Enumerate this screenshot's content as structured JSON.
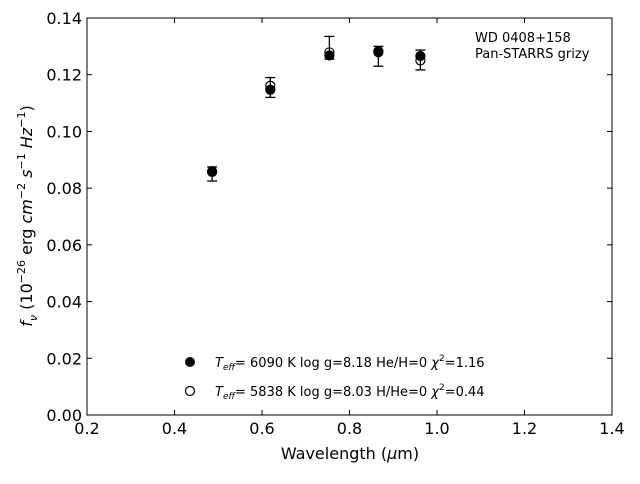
{
  "chart_data": {
    "type": "scatter",
    "title": "",
    "xlabel": {
      "pre": "Wavelength (",
      "sym": "μ",
      "post": "m)"
    },
    "ylabel": {
      "f": "f",
      "sub": "ν",
      "open": " (10",
      "exp1": "−26",
      "unit": " erg ",
      "cm": "cm",
      "exp2": "−2",
      "s": " s",
      "exp3": "−1",
      "hz": " Hz",
      "exp4": "−1",
      "close": ")"
    },
    "xlim": [
      0.2,
      1.4
    ],
    "ylim": [
      0.0,
      0.14
    ],
    "xticks": [
      "0.2",
      "0.4",
      "0.6",
      "0.8",
      "1.0",
      "1.2",
      "1.4"
    ],
    "yticks": [
      "0.00",
      "0.02",
      "0.04",
      "0.06",
      "0.08",
      "0.10",
      "0.12",
      "0.14"
    ],
    "grid": false,
    "annotation": [
      "WD 0408+158",
      "Pan-STARRS grizy"
    ],
    "observed": {
      "x": [
        0.486,
        0.619,
        0.754,
        0.866,
        0.962
      ],
      "y": [
        0.085,
        0.1155,
        0.1295,
        0.1265,
        0.1252
      ],
      "yerr": [
        0.0025,
        0.0035,
        0.004,
        0.0035,
        0.0035
      ]
    },
    "series": [
      {
        "marker": "filled",
        "x": [
          0.486,
          0.619,
          0.754,
          0.866,
          0.962
        ],
        "y": [
          0.0859,
          0.1147,
          0.1268,
          0.1283,
          0.1266
        ],
        "legend": {
          "t": "T",
          "sub": "eff",
          "rest": "=  6090 K  log g=8.18  He/H=0  ",
          "chi": "χ",
          "sup": "2",
          "val": "=1.16"
        }
      },
      {
        "marker": "open",
        "x": [
          0.486,
          0.619,
          0.754,
          0.866,
          0.962
        ],
        "y": [
          0.0857,
          0.1161,
          0.1279,
          0.1279,
          0.125
        ],
        "legend": {
          "t": "T",
          "sub": "eff",
          "rest": "=  5838 K  log g=8.03  H/He=0  ",
          "chi": "χ",
          "sup": "2",
          "val": "=0.44"
        }
      }
    ],
    "legend_position": "lower-center"
  }
}
